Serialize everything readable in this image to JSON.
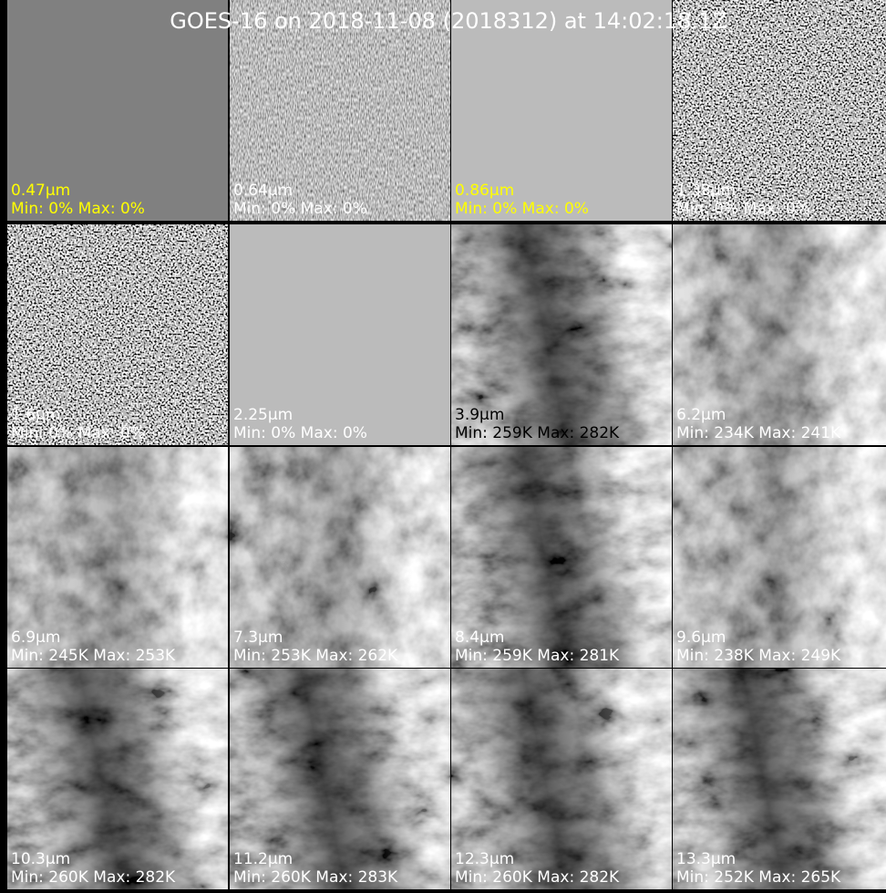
{
  "title": "GOES-16 on 2018-11-08 (2018312) at 14:02:18.1Z",
  "panels": [
    {
      "band": "0.47μm",
      "stats": "Min: 0% Max: 0%",
      "label_color": "#ffff00"
    },
    {
      "band": "0.64μm",
      "stats": "Min: 0% Max: 0%",
      "label_color": "#ffffff"
    },
    {
      "band": "0.86μm",
      "stats": "Min: 0% Max: 0%",
      "label_color": "#ffff00"
    },
    {
      "band": "1.38μm",
      "stats": "Min: 0% Max: 0%",
      "label_color": "#ffffff"
    },
    {
      "band": "1.6μm",
      "stats": "Min: 0% Max: 0%",
      "label_color": "#ffffff"
    },
    {
      "band": "2.25μm",
      "stats": "Min: 0% Max: 0%",
      "label_color": "#ffffff"
    },
    {
      "band": "3.9μm",
      "stats": "Min: 259K Max: 282K",
      "label_color": "#000000"
    },
    {
      "band": "6.2μm",
      "stats": "Min: 234K Max: 241K",
      "label_color": "#ffffff"
    },
    {
      "band": "6.9μm",
      "stats": "Min: 245K Max: 253K",
      "label_color": "#ffffff"
    },
    {
      "band": "7.3μm",
      "stats": "Min: 253K Max: 262K",
      "label_color": "#ffffff"
    },
    {
      "band": "8.4μm",
      "stats": "Min: 259K Max: 281K",
      "label_color": "#ffffff"
    },
    {
      "band": "9.6μm",
      "stats": "Min: 238K Max: 249K",
      "label_color": "#ffffff"
    },
    {
      "band": "10.3μm",
      "stats": "Min: 260K Max: 282K",
      "label_color": "#ffffff"
    },
    {
      "band": "11.2μm",
      "stats": "Min: 260K Max: 283K",
      "label_color": "#ffffff"
    },
    {
      "band": "12.3μm",
      "stats": "Min: 260K Max: 282K",
      "label_color": "#ffffff"
    },
    {
      "band": "13.3μm",
      "stats": "Min: 252K Max: 265K",
      "label_color": "#ffffff"
    }
  ]
}
